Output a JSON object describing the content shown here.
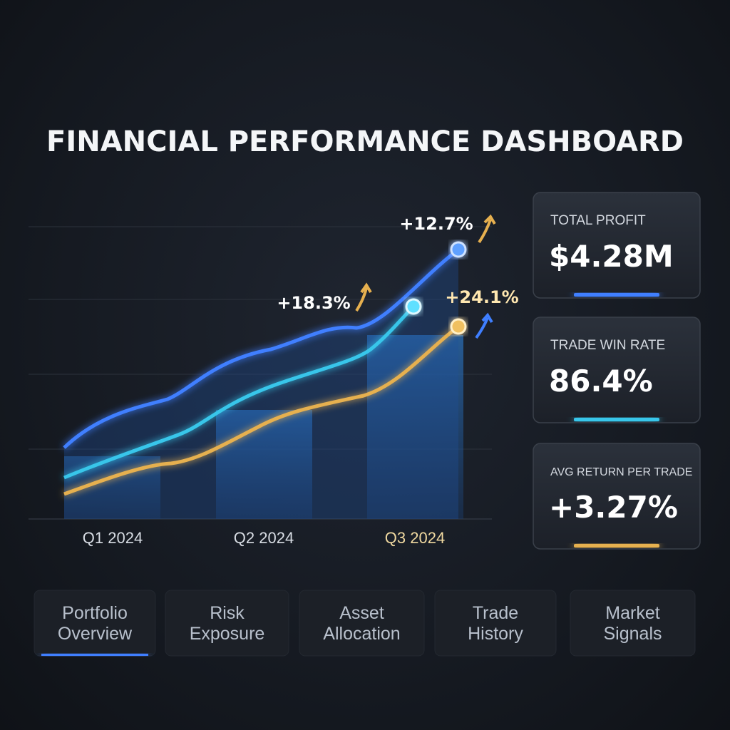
{
  "header": {
    "title": "FINANCIAL PERFORMANCE DASHBOARD"
  },
  "chart": {
    "categories": [
      "Q1 2024",
      "Q2 2024",
      "Q3 2024"
    ],
    "annotations": [
      "+12.7%",
      "+18.3%",
      "+24.1%"
    ]
  },
  "kpis": [
    {
      "label": "TOTAL PROFIT",
      "value": "$4.28M"
    },
    {
      "label": "TRADE WIN RATE",
      "value": "86.4%"
    },
    {
      "label": "AVG RETURN PER TRADE",
      "value": "+3.27%"
    }
  ],
  "tabs": [
    [
      "Portfolio",
      "Overview"
    ],
    [
      "Risk",
      "Exposure"
    ],
    [
      "Asset",
      "Allocation"
    ],
    [
      "Trade",
      "History"
    ],
    [
      "Market",
      "Signals"
    ]
  ]
}
